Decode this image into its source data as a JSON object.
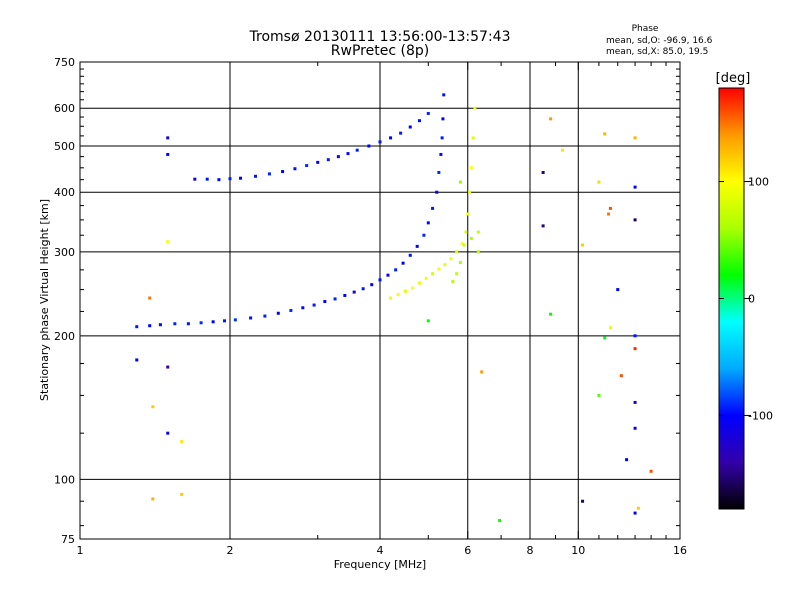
{
  "chart_data": {
    "type": "scatter",
    "title": "Tromsø 20130111 13:56:00-13:57:43",
    "subtitle": "RwPretec (8p)",
    "xlabel": "Frequency [MHz]",
    "ylabel": "Stationary phase Virtual Height [km]",
    "x_scale": "log",
    "y_scale": "log",
    "xlim": [
      1,
      16
    ],
    "ylim": [
      75,
      750
    ],
    "x_ticks": [
      1,
      2,
      4,
      6,
      8,
      10,
      16
    ],
    "x_tick_labels": [
      "1",
      "2",
      "4",
      "6",
      "8",
      "10",
      "16"
    ],
    "y_ticks": [
      75,
      100,
      200,
      300,
      400,
      500,
      600,
      750
    ],
    "y_tick_labels": [
      "75",
      "100",
      "200",
      "300",
      "400",
      "500",
      "600",
      "750"
    ],
    "grid": true,
    "phase_note": {
      "heading": "Phase",
      "line1": "mean, sd,O: -96.9, 16.6",
      "line2": "mean, sd,X:  85.0, 19.5"
    },
    "colorbar": {
      "label": "[deg]",
      "ticks": [
        100,
        0,
        -100
      ],
      "tick_labels": [
        "100",
        "0",
        "-100"
      ],
      "range": [
        -180,
        180
      ],
      "colors": [
        "#000000",
        "#3300aa",
        "#0000ff",
        "#00aaff",
        "#00ffff",
        "#00ff00",
        "#aaff00",
        "#ffff00",
        "#ff9900",
        "#ff0000"
      ]
    },
    "series": [
      {
        "mode": "O",
        "points": [
          [
            1.3,
            209,
            -95
          ],
          [
            1.38,
            210,
            -100
          ],
          [
            1.45,
            211,
            -98
          ],
          [
            1.55,
            212,
            -92
          ],
          [
            1.65,
            212,
            -96
          ],
          [
            1.75,
            213,
            -90
          ],
          [
            1.85,
            214,
            -100
          ],
          [
            1.95,
            215,
            -95
          ],
          [
            2.05,
            216,
            -88
          ],
          [
            2.2,
            218,
            -97
          ],
          [
            2.35,
            220,
            -93
          ],
          [
            2.5,
            223,
            -101
          ],
          [
            2.65,
            226,
            -90
          ],
          [
            2.8,
            229,
            -98
          ],
          [
            2.95,
            232,
            -94
          ],
          [
            3.1,
            236,
            -103
          ],
          [
            3.25,
            239,
            -92
          ],
          [
            3.4,
            243,
            -99
          ],
          [
            3.55,
            247,
            -110
          ],
          [
            3.7,
            251,
            -95
          ],
          [
            3.85,
            256,
            -102
          ],
          [
            4.0,
            262,
            -96
          ],
          [
            4.15,
            268,
            -108
          ],
          [
            4.3,
            275,
            -93
          ],
          [
            4.45,
            284,
            -100
          ],
          [
            4.6,
            295,
            -97
          ],
          [
            4.75,
            308,
            -104
          ],
          [
            4.9,
            325,
            -92
          ],
          [
            5.0,
            345,
            -99
          ],
          [
            5.1,
            370,
            -95
          ],
          [
            5.2,
            400,
            -101
          ],
          [
            5.25,
            440,
            -90
          ],
          [
            5.3,
            480,
            -98
          ],
          [
            5.33,
            520,
            -94
          ],
          [
            5.35,
            570,
            -100
          ],
          [
            5.37,
            640,
            -96
          ],
          [
            1.8,
            426,
            -95
          ],
          [
            1.9,
            425,
            -99
          ],
          [
            2.0,
            427,
            -93
          ],
          [
            2.1,
            428,
            -101
          ],
          [
            2.25,
            432,
            -96
          ],
          [
            2.4,
            437,
            -92
          ],
          [
            2.55,
            442,
            -100
          ],
          [
            2.7,
            448,
            -97
          ],
          [
            2.85,
            455,
            -90
          ],
          [
            3.0,
            462,
            -103
          ],
          [
            3.15,
            468,
            -95
          ],
          [
            3.3,
            475,
            -110
          ],
          [
            3.45,
            482,
            -98
          ],
          [
            3.6,
            490,
            -93
          ],
          [
            3.8,
            500,
            -101
          ],
          [
            4.0,
            510,
            -96
          ],
          [
            4.2,
            520,
            -99
          ],
          [
            4.4,
            532,
            -94
          ],
          [
            4.6,
            548,
            -100
          ],
          [
            4.8,
            565,
            -97
          ],
          [
            5.0,
            585,
            -92
          ],
          [
            1.5,
            520,
            -115
          ],
          [
            1.5,
            480,
            -100
          ],
          [
            1.7,
            426,
            -120
          ],
          [
            1.3,
            178,
            -100
          ],
          [
            1.5,
            172,
            -140
          ],
          [
            1.5,
            125,
            -110
          ],
          [
            8.5,
            440,
            -150
          ],
          [
            8.5,
            340,
            -150
          ],
          [
            13.0,
            410,
            -105
          ],
          [
            13.0,
            350,
            -160
          ],
          [
            12.0,
            250,
            -100
          ],
          [
            13.0,
            200,
            -95
          ],
          [
            13.0,
            145,
            -120
          ],
          [
            13.0,
            128,
            -105
          ],
          [
            12.5,
            110,
            -100
          ],
          [
            13.0,
            85,
            -105
          ],
          [
            10.2,
            90,
            -155
          ]
        ]
      },
      {
        "mode": "X",
        "points": [
          [
            4.2,
            240,
            90
          ],
          [
            4.35,
            244,
            95
          ],
          [
            4.5,
            248,
            85
          ],
          [
            4.65,
            252,
            100
          ],
          [
            4.8,
            258,
            88
          ],
          [
            4.95,
            264,
            92
          ],
          [
            5.1,
            270,
            80
          ],
          [
            5.25,
            276,
            97
          ],
          [
            5.4,
            282,
            86
          ],
          [
            5.55,
            290,
            93
          ],
          [
            5.7,
            300,
            84
          ],
          [
            5.85,
            312,
            99
          ],
          [
            5.95,
            330,
            82
          ],
          [
            6.0,
            360,
            95
          ],
          [
            6.05,
            400,
            88
          ],
          [
            6.1,
            450,
            100
          ],
          [
            6.15,
            520,
            85
          ],
          [
            6.2,
            600,
            92
          ],
          [
            5.6,
            260,
            65
          ],
          [
            5.7,
            270,
            70
          ],
          [
            5.8,
            285,
            60
          ],
          [
            5.9,
            310,
            75
          ],
          [
            6.1,
            320,
            60
          ],
          [
            6.3,
            330,
            70
          ],
          [
            6.3,
            300,
            65
          ],
          [
            5.0,
            215,
            20
          ],
          [
            5.8,
            420,
            55
          ],
          [
            6.4,
            168,
            140
          ],
          [
            8.8,
            570,
            140
          ],
          [
            9.3,
            490,
            110
          ],
          [
            10.2,
            310,
            120
          ],
          [
            11.0,
            420,
            115
          ],
          [
            11.3,
            530,
            130
          ],
          [
            11.5,
            360,
            150
          ],
          [
            11.6,
            208,
            90
          ],
          [
            13.0,
            520,
            130
          ],
          [
            13.0,
            188,
            170
          ],
          [
            12.2,
            165,
            160
          ],
          [
            11.0,
            150,
            40
          ],
          [
            14.0,
            104,
            160
          ],
          [
            13.2,
            87,
            120
          ],
          [
            1.38,
            240,
            150
          ],
          [
            1.5,
            315,
            95
          ],
          [
            1.4,
            142,
            120
          ],
          [
            1.6,
            120,
            110
          ],
          [
            1.4,
            91,
            130
          ],
          [
            1.6,
            93,
            120
          ],
          [
            6.95,
            82,
            25
          ],
          [
            8.8,
            222,
            20
          ],
          [
            11.3,
            198,
            15
          ],
          [
            11.6,
            370,
            160
          ]
        ]
      }
    ]
  }
}
